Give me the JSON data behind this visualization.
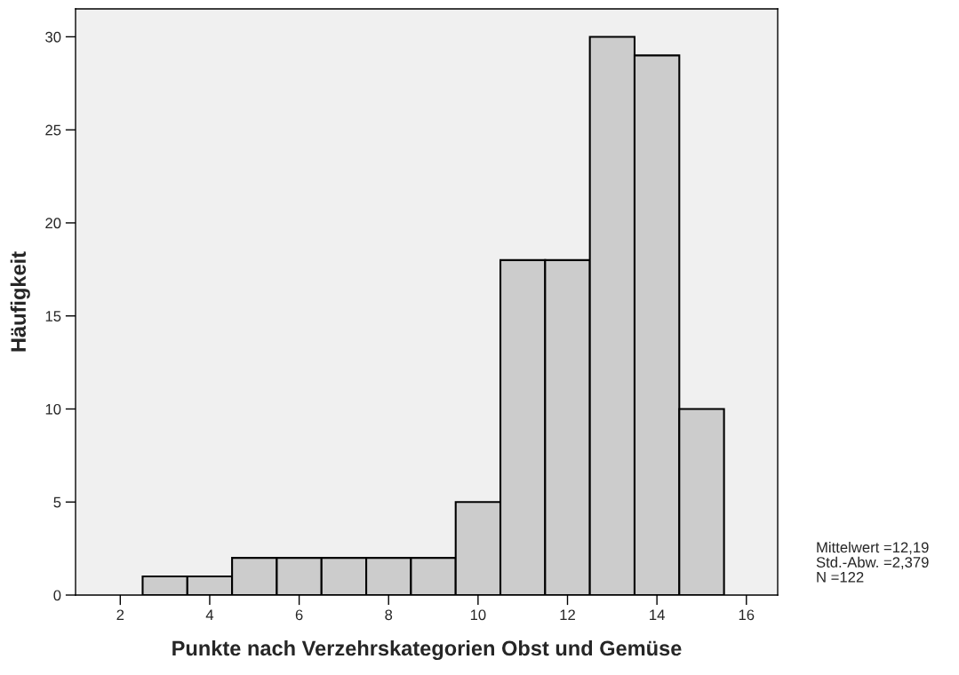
{
  "chart_data": {
    "type": "histogram",
    "xlabel": "Punkte nach Verzehrskategorien Obst und Gemüse",
    "ylabel": "Häufigkeit",
    "bins": [
      2.5,
      3.5,
      4.5,
      5.5,
      6.5,
      7.5,
      8.5,
      9.5,
      10.5,
      11.5,
      12.5,
      13.5,
      14.5,
      15.5
    ],
    "values": [
      1,
      1,
      2,
      2,
      2,
      2,
      2,
      5,
      18,
      18,
      30,
      29,
      10
    ],
    "color": "#cccccc",
    "xlim": [
      1.0,
      16.7
    ],
    "xticks": [
      2,
      4,
      6,
      8,
      10,
      12,
      14,
      16
    ],
    "ylim": [
      0,
      31.5
    ],
    "yticks": [
      0,
      5,
      10,
      15,
      20,
      25,
      30
    ],
    "grid": false,
    "annotations": [
      "Mittelwert =12,19",
      "Std.-Abw. =2,379",
      "N =122"
    ]
  }
}
